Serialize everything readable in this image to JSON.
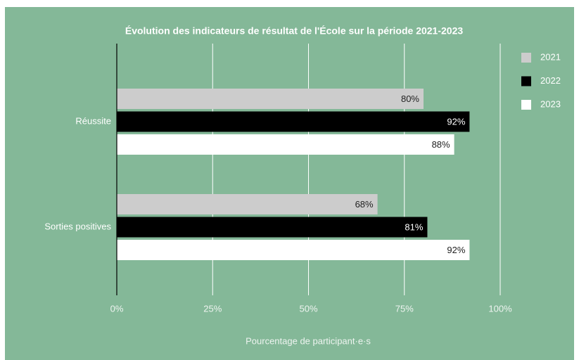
{
  "chart_data": {
    "type": "bar",
    "orientation": "horizontal",
    "title": "Évolution des indicateurs de résultat de l'École sur la période 2021-2023",
    "x_label": "Pourcentage de participant·e·s",
    "categories": [
      "Réussite",
      "Sorties positives"
    ],
    "series": [
      {
        "name": "2021",
        "color": "#cccccc",
        "values": [
          80,
          68
        ],
        "value_labels": [
          "80%",
          "68%"
        ]
      },
      {
        "name": "2022",
        "color": "#000000",
        "values": [
          92,
          81
        ],
        "value_labels": [
          "92%",
          "81%"
        ]
      },
      {
        "name": "2023",
        "color": "#ffffff",
        "values": [
          88,
          92
        ],
        "value_labels": [
          "88%",
          "92%"
        ]
      }
    ],
    "xlim": [
      0,
      100
    ],
    "xticks": [
      {
        "value": 0,
        "label": "0%"
      },
      {
        "value": 25,
        "label": "25%"
      },
      {
        "value": 50,
        "label": "50%"
      },
      {
        "value": 75,
        "label": "75%"
      },
      {
        "value": 100,
        "label": "100%"
      }
    ],
    "grid": true,
    "legend": "right",
    "background": "#84b898"
  }
}
